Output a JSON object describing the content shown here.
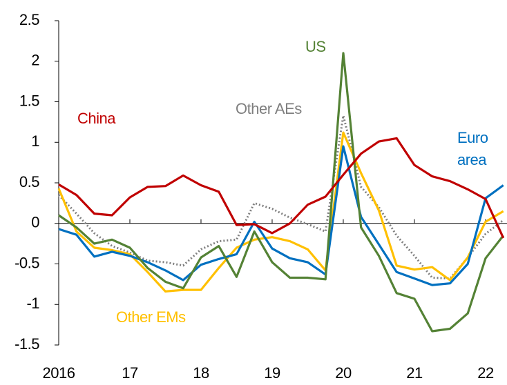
{
  "chart_data": {
    "type": "line",
    "x": [
      2016,
      2016.25,
      2016.5,
      2016.75,
      2017,
      2017.25,
      2017.5,
      2017.75,
      2018,
      2018.25,
      2018.5,
      2018.75,
      2019,
      2019.25,
      2019.5,
      2019.75,
      2020,
      2020.25,
      2020.5,
      2020.75,
      2021,
      2021.25,
      2021.5,
      2021.75,
      2022,
      2022.25
    ],
    "xlim": [
      2016,
      2022.25
    ],
    "xticks": [
      2016,
      {
        "value": 2017,
        "label": "17"
      },
      {
        "value": 2018,
        "label": "18"
      },
      {
        "value": 2019,
        "label": "19"
      },
      {
        "value": 2020,
        "label": "20"
      },
      {
        "value": 2021,
        "label": "21"
      },
      {
        "value": 2022,
        "label": "22"
      }
    ],
    "ylim": [
      -1.5,
      2.5
    ],
    "yticks": [
      -1.5,
      -1,
      -0.5,
      0,
      0.5,
      1,
      1.5,
      2,
      2.5
    ],
    "series": [
      {
        "name": "China",
        "color": "#c00000",
        "style": "solid",
        "values": [
          0.48,
          0.35,
          0.12,
          0.1,
          0.32,
          0.45,
          0.46,
          0.59,
          0.47,
          0.39,
          -0.02,
          -0.01,
          -0.12,
          0.0,
          0.23,
          0.33,
          0.6,
          0.86,
          1.01,
          1.05,
          0.72,
          0.58,
          0.52,
          0.42,
          0.3,
          -0.18
        ]
      },
      {
        "name": "US",
        "color": "#548235",
        "style": "solid",
        "values": [
          0.1,
          -0.05,
          -0.25,
          -0.2,
          -0.3,
          -0.55,
          -0.72,
          -0.8,
          -0.42,
          -0.28,
          -0.66,
          -0.1,
          -0.48,
          -0.67,
          -0.67,
          -0.69,
          2.1,
          -0.05,
          -0.4,
          -0.86,
          -0.93,
          -1.33,
          -1.3,
          -1.11,
          -0.43,
          -0.15
        ]
      },
      {
        "name": "Other AEs",
        "color": "#7f7f7f",
        "style": "dotted",
        "values": [
          0.35,
          0.12,
          -0.12,
          -0.28,
          -0.36,
          -0.46,
          -0.48,
          -0.52,
          -0.32,
          -0.22,
          -0.2,
          0.25,
          0.18,
          0.07,
          -0.01,
          -0.1,
          1.33,
          0.45,
          0.2,
          -0.15,
          -0.4,
          -0.67,
          -0.68,
          -0.42,
          -0.13,
          0.04
        ]
      },
      {
        "name": "Euro area",
        "color": "#0070c0",
        "style": "solid",
        "values": [
          -0.07,
          -0.14,
          -0.41,
          -0.35,
          -0.4,
          -0.48,
          -0.58,
          -0.7,
          -0.51,
          -0.44,
          -0.38,
          0.02,
          -0.31,
          -0.43,
          -0.48,
          -0.63,
          0.95,
          0.08,
          -0.26,
          -0.6,
          -0.68,
          -0.76,
          -0.74,
          -0.5,
          0.31,
          0.47
        ]
      },
      {
        "name": "Other EMs",
        "color": "#ffc000",
        "style": "solid",
        "values": [
          0.43,
          -0.1,
          -0.3,
          -0.33,
          -0.38,
          -0.6,
          -0.84,
          -0.82,
          -0.82,
          -0.55,
          -0.3,
          -0.2,
          -0.17,
          -0.22,
          -0.32,
          -0.58,
          1.12,
          0.62,
          0.16,
          -0.52,
          -0.57,
          -0.54,
          -0.7,
          -0.42,
          0.02,
          0.15
        ]
      }
    ]
  }
}
